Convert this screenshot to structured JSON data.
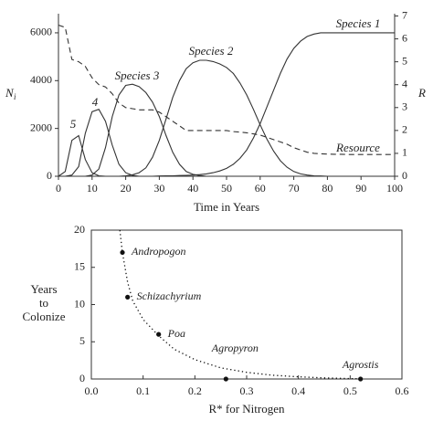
{
  "chart_data": [
    {
      "type": "line",
      "ylabel": "N",
      "ylabel_sub": "i",
      "y2label": "R",
      "xlabel": "Time in Years",
      "x": [
        0,
        2,
        4,
        6,
        8,
        10,
        12,
        14,
        16,
        18,
        20,
        22,
        24,
        26,
        28,
        30,
        32,
        34,
        36,
        38,
        40,
        42,
        44,
        46,
        48,
        50,
        52,
        54,
        56,
        58,
        60,
        62,
        64,
        66,
        68,
        70,
        72,
        74,
        76,
        78,
        80,
        82,
        84,
        86,
        88,
        90,
        92,
        94,
        96,
        98,
        100
      ],
      "xlim": [
        0,
        100
      ],
      "xticks": [
        0,
        10,
        20,
        30,
        40,
        50,
        60,
        70,
        80,
        90,
        100
      ],
      "ylim": [
        0,
        6800
      ],
      "yticks": [
        0,
        2000,
        4000,
        6000
      ],
      "y2lim": [
        0,
        7.1
      ],
      "y2ticks": [
        0,
        1,
        2,
        3,
        4,
        5,
        6,
        7
      ],
      "series": [
        {
          "color": "#333333",
          "style": "solid",
          "values": [
            0,
            0,
            0,
            0,
            0,
            0,
            0,
            0,
            0,
            0,
            0,
            0,
            0,
            0,
            0,
            10,
            15,
            20,
            30,
            40,
            50,
            70,
            100,
            150,
            220,
            330,
            500,
            750,
            1100,
            1600,
            2200,
            2900,
            3600,
            4300,
            4900,
            5350,
            5650,
            5850,
            5950,
            6000,
            6000,
            6000,
            6000,
            6000,
            6000,
            6000,
            6000,
            6000,
            6000,
            6000,
            6000
          ]
        },
        {
          "color": "#333333",
          "style": "solid",
          "values": [
            0,
            0,
            0,
            0,
            0,
            0,
            0,
            0,
            0,
            0,
            20,
            60,
            150,
            350,
            800,
            1500,
            2400,
            3300,
            4000,
            4500,
            4750,
            4850,
            4850,
            4800,
            4700,
            4550,
            4300,
            3900,
            3400,
            2800,
            2150,
            1550,
            1050,
            650,
            380,
            200,
            100,
            50,
            20,
            10,
            0,
            0,
            0,
            0,
            0,
            0,
            0,
            0,
            0,
            0,
            0
          ]
        },
        {
          "color": "#333333",
          "style": "solid",
          "values": [
            0,
            0,
            0,
            0,
            0,
            50,
            300,
            1200,
            2500,
            3400,
            3800,
            3850,
            3750,
            3500,
            3100,
            2500,
            1700,
            1000,
            500,
            200,
            80,
            30,
            0,
            0,
            0,
            0,
            0,
            0,
            0,
            0,
            0,
            0,
            0,
            0,
            0,
            0,
            0,
            0,
            0,
            0,
            0,
            0,
            0,
            0,
            0,
            0,
            0,
            0,
            0,
            0,
            0
          ]
        },
        {
          "color": "#333333",
          "style": "solid",
          "values": [
            0,
            0,
            50,
            400,
            1800,
            2700,
            2800,
            2300,
            1300,
            500,
            150,
            40,
            0,
            0,
            0,
            0,
            0,
            0,
            0,
            0,
            0,
            0,
            0,
            0,
            0,
            0,
            0,
            0,
            0,
            0,
            0,
            0,
            0,
            0,
            0,
            0,
            0,
            0,
            0,
            0,
            0,
            0,
            0,
            0,
            0,
            0,
            0,
            0,
            0,
            0,
            0
          ]
        },
        {
          "color": "#333333",
          "style": "solid",
          "values": [
            0,
            200,
            1500,
            1700,
            700,
            150,
            20,
            0,
            0,
            0,
            0,
            0,
            0,
            0,
            0,
            0,
            0,
            0,
            0,
            0,
            0,
            0,
            0,
            0,
            0,
            0,
            0,
            0,
            0,
            0,
            0,
            0,
            0,
            0,
            0,
            0,
            0,
            0,
            0,
            0,
            0,
            0,
            0,
            0,
            0,
            0,
            0,
            0,
            0,
            0,
            0
          ]
        },
        {
          "color": "#333333",
          "style": "dashed",
          "axis": "y2",
          "values": [
            6.6,
            6.5,
            5.1,
            5.0,
            4.8,
            4.3,
            4.0,
            3.9,
            3.6,
            3.2,
            3.0,
            2.95,
            2.9,
            2.9,
            2.9,
            2.8,
            2.6,
            2.4,
            2.2,
            2.0,
            2.0,
            2.0,
            2.0,
            2.0,
            2.0,
            2.0,
            1.95,
            1.93,
            1.9,
            1.85,
            1.8,
            1.7,
            1.6,
            1.5,
            1.4,
            1.25,
            1.15,
            1.05,
            1.0,
            0.98,
            0.97,
            0.96,
            0.96,
            0.95,
            0.95,
            0.95,
            0.95,
            0.95,
            0.95,
            0.95,
            0.95
          ]
        }
      ],
      "annotations": [
        "Species 1",
        "Species 2",
        "Species 3",
        "4",
        "5",
        "Resource"
      ]
    },
    {
      "type": "scatter",
      "ylabel": [
        "Years",
        "to",
        "Colonize"
      ],
      "xlabel": "R* for Nitrogen",
      "x": [
        0.06,
        0.07,
        0.13,
        0.26,
        0.52
      ],
      "values": [
        17,
        11,
        6,
        0,
        0
      ],
      "point_labels": [
        "Andropogon",
        "Schizachyrium",
        "Poa",
        "Agropyron",
        "Agrostis"
      ],
      "curve": {
        "x": [
          0.055,
          0.06,
          0.07,
          0.08,
          0.1,
          0.13,
          0.16,
          0.2,
          0.25,
          0.3,
          0.35,
          0.4,
          0.45,
          0.5,
          0.52
        ],
        "values": [
          20,
          17,
          13,
          10.5,
          8,
          5.8,
          4,
          2.6,
          1.5,
          0.9,
          0.5,
          0.3,
          0.15,
          0.05,
          0.02
        ]
      },
      "color": "#111111",
      "xlim": [
        0,
        0.6
      ],
      "xticks": [
        {
          "value": 0,
          "label": "0.0"
        },
        0.1,
        0.2,
        0.3,
        0.4,
        0.5,
        0.6
      ],
      "ylim": [
        0,
        20
      ],
      "yticks": [
        0,
        5,
        10,
        15,
        20
      ]
    }
  ]
}
